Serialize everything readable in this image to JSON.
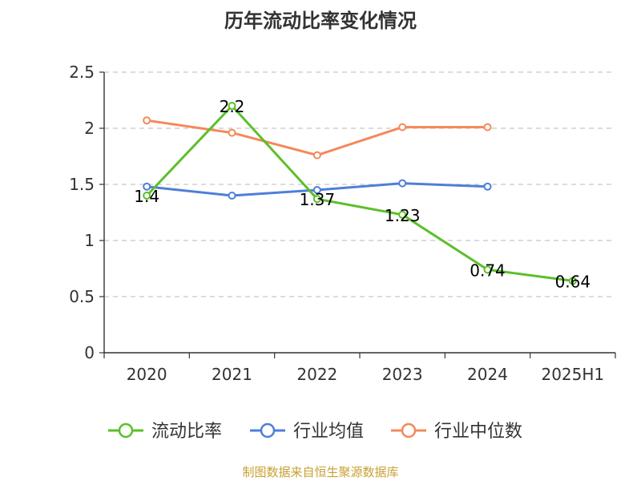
{
  "chart_data": {
    "type": "line",
    "title": "历年流动比率变化情况",
    "categories": [
      "2020",
      "2021",
      "2022",
      "2023",
      "2024",
      "2025H1"
    ],
    "ylim": [
      0,
      2.5
    ],
    "yticks": [
      "0",
      "0.5",
      "1",
      "1.5",
      "2",
      "2.5"
    ],
    "grid": true,
    "legend_position": "bottom",
    "series": [
      {
        "name": "流动比率",
        "color": "#5cbf2a",
        "values": [
          1.4,
          2.2,
          1.37,
          1.23,
          0.74,
          0.64
        ],
        "labels": [
          "1.4",
          "2.2",
          "1.37",
          "1.23",
          "0.74",
          "0.64"
        ]
      },
      {
        "name": "行业均值",
        "color": "#4e7fd9",
        "values": [
          1.48,
          1.4,
          1.45,
          1.51,
          1.48,
          null
        ]
      },
      {
        "name": "行业中位数",
        "color": "#f4895a",
        "values": [
          2.07,
          1.96,
          1.76,
          2.01,
          2.01,
          null
        ]
      }
    ]
  },
  "source": "制图数据来自恒生聚源数据库"
}
